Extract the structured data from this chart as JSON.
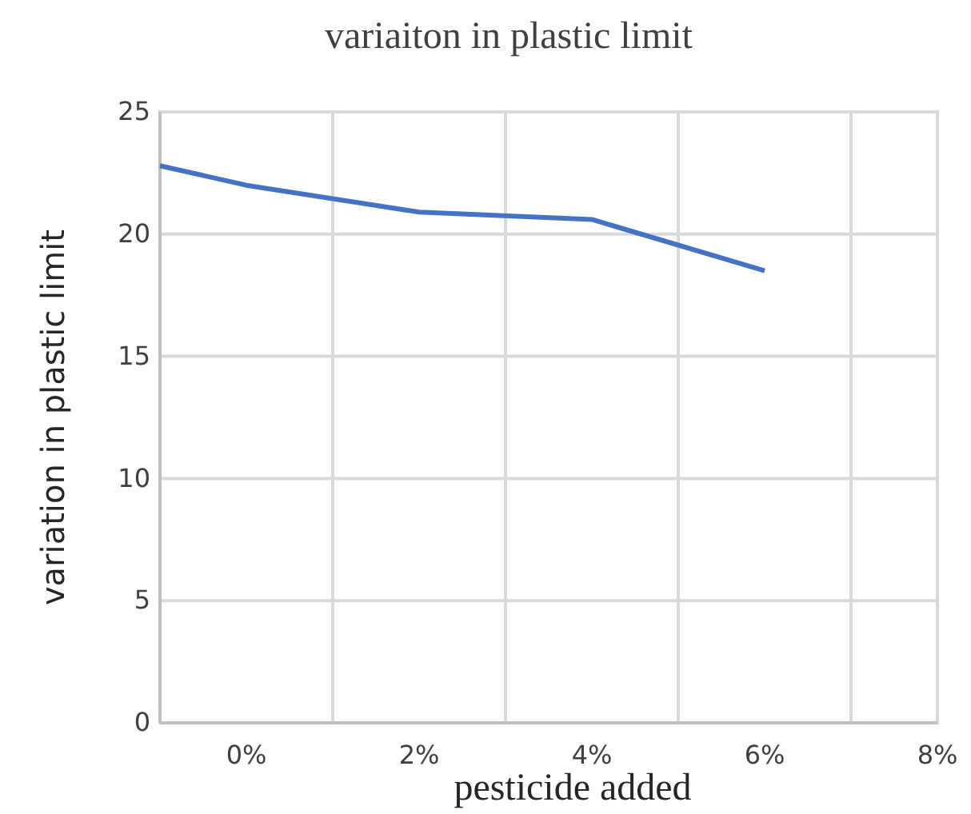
{
  "chart_data": {
    "type": "line",
    "title": "variaiton in plastic limit",
    "xlabel": "pesticide added",
    "ylabel": "variation in plastic limit",
    "x": [
      -1,
      0,
      2,
      4,
      6
    ],
    "series": [
      {
        "color": "#4472c4",
        "values": [
          22.8,
          22.0,
          20.9,
          20.6,
          18.5
        ]
      }
    ],
    "xlim": [
      -1,
      8
    ],
    "xticks": [
      {
        "value": 0,
        "label": "0%"
      },
      {
        "value": 1,
        "label": null
      },
      {
        "value": 2,
        "label": "2%"
      },
      {
        "value": 3,
        "label": null
      },
      {
        "value": 4,
        "label": "4%"
      },
      {
        "value": 5,
        "label": null
      },
      {
        "value": 6,
        "label": "6%"
      },
      {
        "value": 7,
        "label": null
      },
      {
        "value": 8,
        "label": "8%"
      }
    ],
    "ylim": [
      0,
      25
    ],
    "yticks": [
      0,
      5,
      10,
      15,
      20,
      25
    ],
    "grid": true,
    "marker": "none",
    "line_style": "solid"
  }
}
